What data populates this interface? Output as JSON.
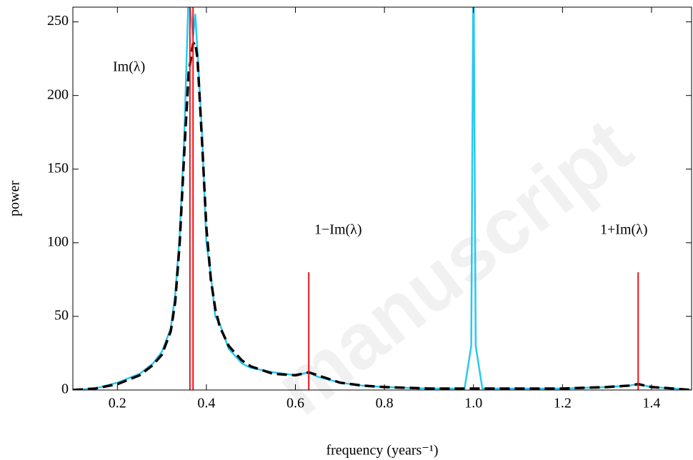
{
  "chart_data": {
    "type": "line",
    "xlabel": "frequency (years⁻¹)",
    "ylabel": "power",
    "watermark": "manuscript",
    "annotations": [
      "Im(λ)",
      "1−Im(λ)",
      "1+Im(λ)"
    ],
    "xlim": [
      0.1,
      1.49
    ],
    "ylim": [
      0,
      260
    ],
    "xticks": [
      0.2,
      0.4,
      0.6,
      0.8,
      {
        "value": 1.0,
        "label": "1.0"
      },
      1.2,
      1.4
    ],
    "yticks": [
      0,
      50,
      100,
      150,
      200,
      250
    ],
    "x": [
      0.1,
      0.15,
      0.2,
      0.25,
      0.28,
      0.3,
      0.32,
      0.33,
      0.34,
      0.35,
      0.36,
      0.37,
      0.375,
      0.38,
      0.39,
      0.4,
      0.41,
      0.42,
      0.43,
      0.45,
      0.48,
      0.5,
      0.55,
      0.6,
      0.63,
      0.65,
      0.7,
      0.75,
      0.8,
      0.9,
      0.98,
      0.995,
      1.0,
      1.005,
      1.02,
      1.1,
      1.2,
      1.3,
      1.35,
      1.37,
      1.4,
      1.45,
      1.49
    ],
    "series": [
      {
        "color": "#29c8f0",
        "dashed": false,
        "values": [
          0,
          1,
          5,
          11,
          18,
          26,
          42,
          65,
          105,
          170,
          270,
          240,
          255,
          230,
          175,
          100,
          78,
          50,
          45,
          28,
          18,
          15,
          12,
          10,
          12,
          9,
          5,
          3,
          2,
          1,
          1,
          30,
          300,
          30,
          1,
          1,
          1,
          2,
          3,
          4,
          2,
          1,
          0
        ]
      },
      {
        "color": "#000000",
        "dashed": true,
        "values": [
          0,
          1,
          4,
          10,
          17,
          24,
          40,
          60,
          100,
          160,
          215,
          235,
          236,
          225,
          170,
          110,
          75,
          55,
          43,
          30,
          20,
          16,
          11,
          10,
          12,
          10,
          5,
          3,
          2,
          1,
          1,
          1,
          1,
          1,
          1,
          1,
          1,
          2,
          3,
          4,
          2,
          1,
          0
        ]
      }
    ],
    "markers": {
      "color": "#e8141c",
      "x": [
        0.363,
        0.37,
        0.63,
        1.37
      ],
      "values": [
        260,
        260,
        80,
        80
      ]
    }
  }
}
